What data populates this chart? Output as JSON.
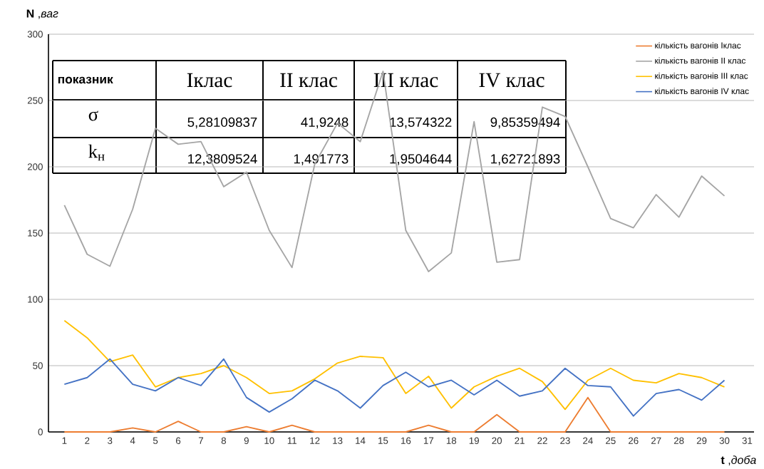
{
  "chart_data": {
    "type": "line",
    "xlabel": "**t** ,*доба*",
    "ylabel": "**N** ,*ваг*",
    "categories": [
      "1",
      "2",
      "3",
      "4",
      "5",
      "6",
      "7",
      "8",
      "9",
      "10",
      "11",
      "12",
      "13",
      "14",
      "15",
      "16",
      "17",
      "18",
      "19",
      "20",
      "21",
      "22",
      "23",
      "24",
      "25",
      "26",
      "27",
      "28",
      "29",
      "30",
      "31"
    ],
    "series": [
      {
        "name": "кількість вагонів Іклас",
        "color": "#ed7d31",
        "values": [
          0,
          0,
          0,
          3,
          0,
          8,
          0,
          0,
          4,
          0,
          5,
          0,
          0,
          0,
          0,
          0,
          5,
          0,
          0,
          13,
          0,
          0,
          0,
          26,
          0,
          0,
          0,
          0,
          0,
          0,
          null
        ]
      },
      {
        "name": "кількість вагонів ІІ клас",
        "color": "#a5a5a5",
        "values": [
          171,
          134,
          125,
          168,
          229,
          217,
          219,
          185,
          196,
          152,
          124,
          202,
          233,
          219,
          272,
          152,
          121,
          135,
          234,
          128,
          130,
          245,
          238,
          200,
          161,
          154,
          179,
          162,
          193,
          178,
          null
        ]
      },
      {
        "name": "кількість вагонів ІІІ клас",
        "color": "#ffc000",
        "values": [
          84,
          71,
          53,
          58,
          34,
          41,
          44,
          50,
          41,
          29,
          31,
          40,
          52,
          57,
          56,
          29,
          42,
          18,
          34,
          42,
          48,
          38,
          17,
          39,
          48,
          39,
          37,
          44,
          41,
          34,
          null
        ]
      },
      {
        "name": "кількість вагонів ІV клас",
        "color": "#4472c4",
        "values": [
          36,
          41,
          55,
          36,
          31,
          41,
          35,
          55,
          26,
          15,
          25,
          39,
          31,
          18,
          35,
          45,
          34,
          39,
          28,
          39,
          27,
          31,
          48,
          35,
          34,
          12,
          29,
          32,
          24,
          39,
          null
        ]
      }
    ],
    "ylim": [
      0,
      300
    ],
    "yticks": [
      0,
      50,
      100,
      150,
      200,
      250,
      300
    ],
    "grid": "y",
    "legend": "top right",
    "annotations": [
      "показник",
      "Іклас",
      "ІІ клас",
      "ІІІ клас",
      "ІV клас",
      "σ",
      "5,28109837",
      "41,9248",
      "13,574322",
      "9,85359494",
      "k$_{н}$",
      "12,3809524",
      "1,491773",
      "1,9504644",
      "1,62721893"
    ]
  }
}
